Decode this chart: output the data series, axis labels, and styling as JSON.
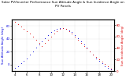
{
  "title": "Solar PV/Inverter Performance Sun Altitude Angle & Sun Incidence Angle on PV Panels",
  "xlabel": "",
  "ylabel_left": "Sun Altitude Angle (deg)",
  "ylabel_right": "Sun Incidence Angle (deg)",
  "background_color": "#ffffff",
  "grid_color": "#aaaaaa",
  "blue_color": "#0000dd",
  "red_color": "#dd0000",
  "time_hours": [
    4,
    4.5,
    5,
    5.5,
    6,
    6.5,
    7,
    7.5,
    8,
    8.5,
    9,
    9.5,
    10,
    10.5,
    11,
    11.5,
    12,
    12.5,
    13,
    13.5,
    14,
    14.5,
    15,
    15.5,
    16,
    16.5,
    17,
    17.5,
    18,
    18.5,
    19,
    19.5,
    20
  ],
  "blue_values": [
    -5,
    -2,
    2,
    6,
    10,
    15,
    20,
    26,
    31,
    36,
    41,
    46,
    50,
    53,
    55,
    56,
    56,
    55,
    53,
    50,
    46,
    41,
    36,
    31,
    26,
    20,
    15,
    10,
    6,
    2,
    -2,
    -5,
    -8
  ],
  "red_values": [
    85,
    82,
    78,
    74,
    70,
    65,
    60,
    54,
    49,
    44,
    49,
    54,
    60,
    65,
    70,
    74,
    75,
    74,
    70,
    65,
    60,
    54,
    49,
    44,
    39,
    34,
    29,
    24,
    20,
    16,
    12,
    8,
    4
  ],
  "ylim_left": [
    -10,
    70
  ],
  "ylim_right": [
    0,
    90
  ],
  "xlim": [
    3.5,
    20.5
  ],
  "title_fontsize": 3.0,
  "tick_fontsize": 2.8,
  "label_fontsize": 2.8,
  "dot_size": 0.4
}
